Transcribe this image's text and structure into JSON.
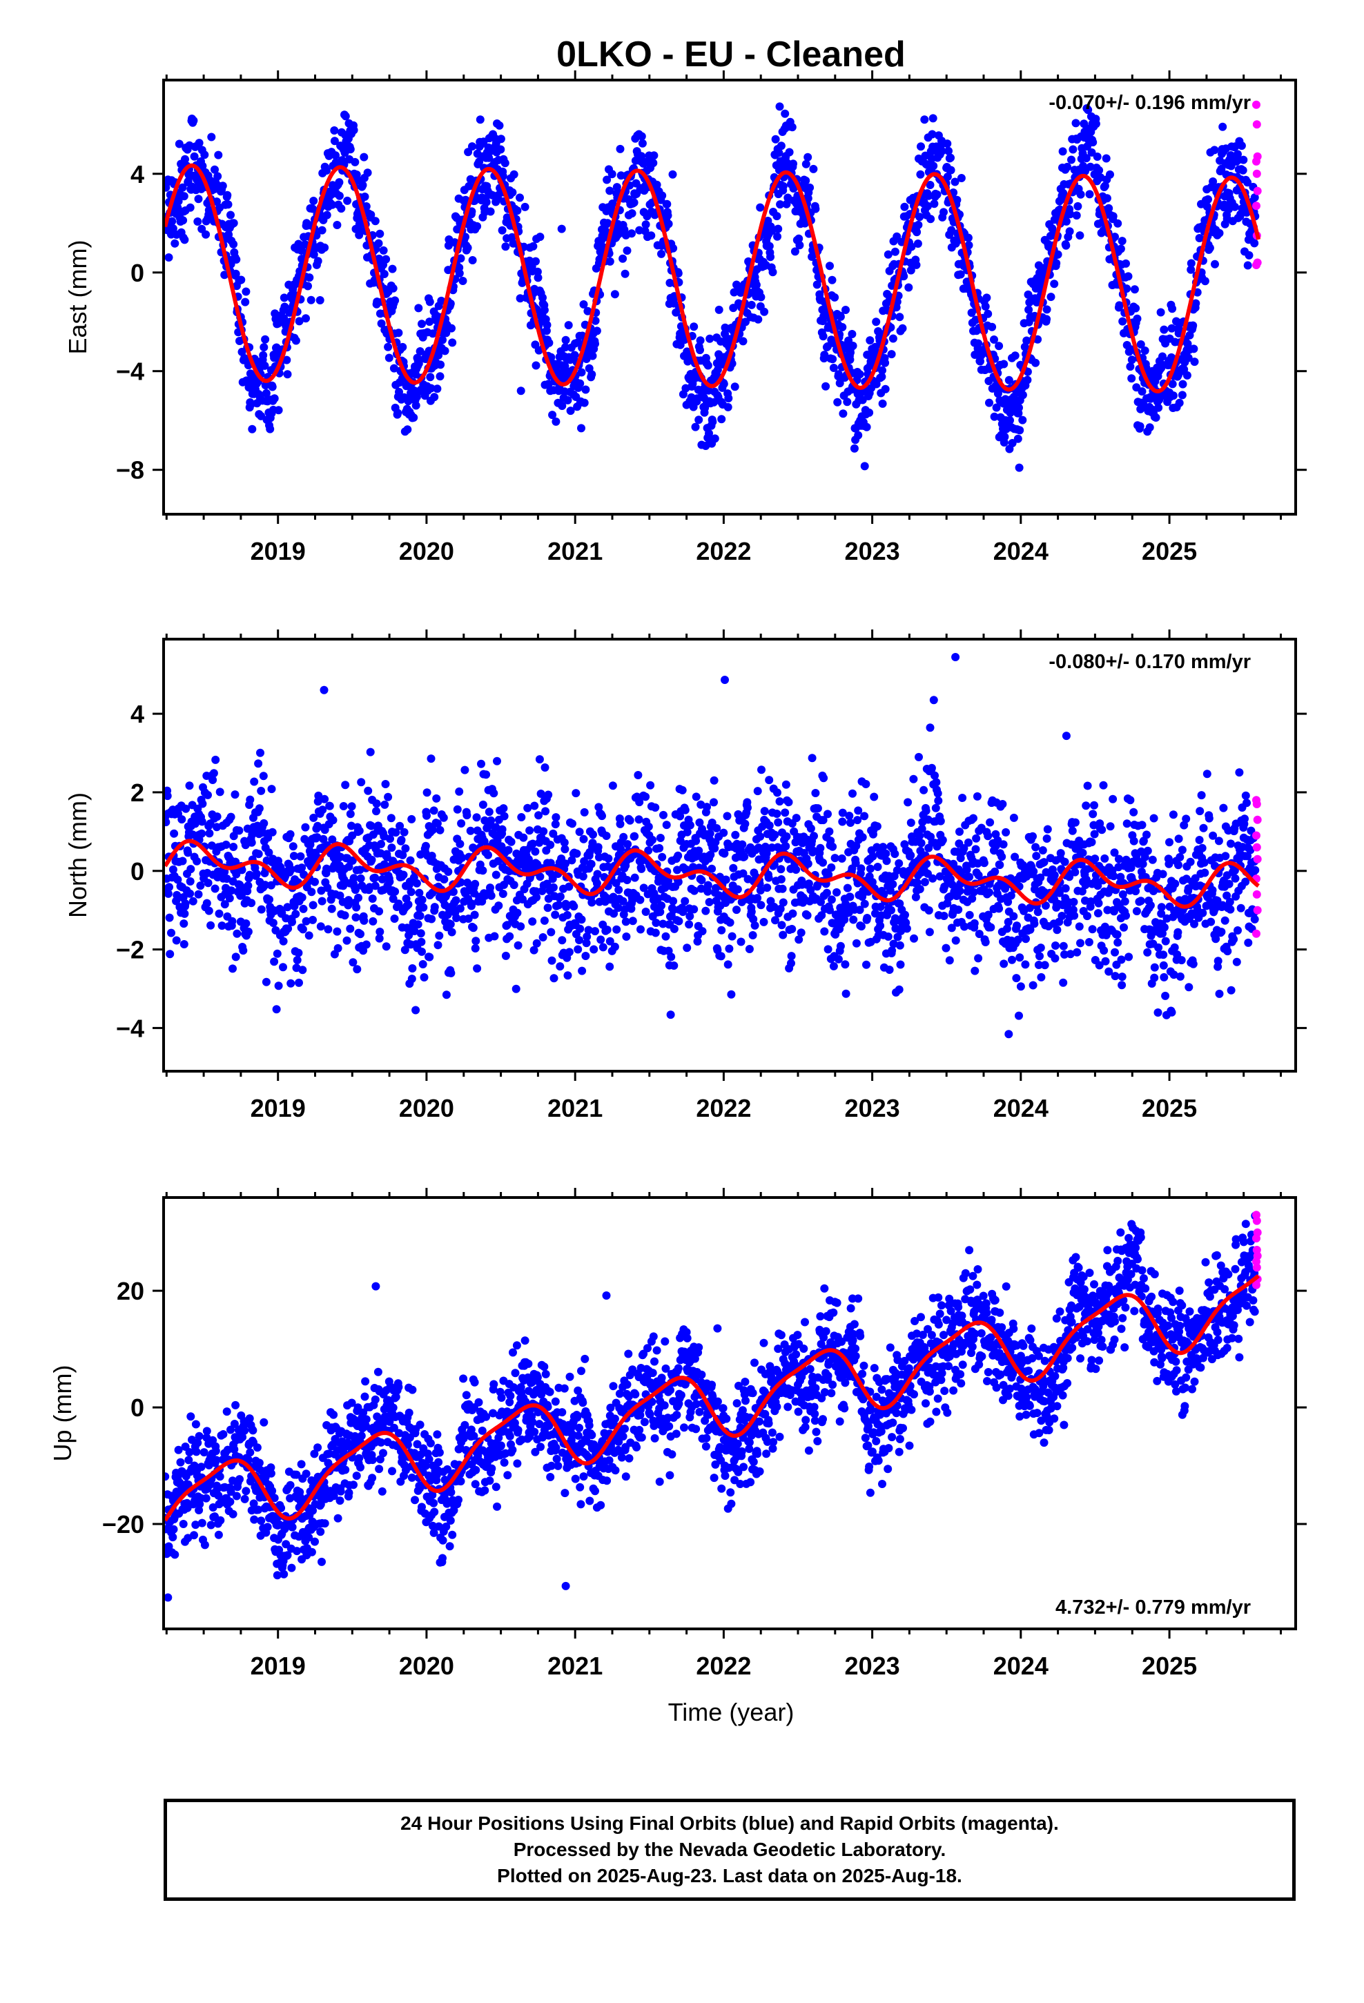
{
  "chart_data": {
    "title": "0LKO  - EU - Cleaned",
    "type": "scatter",
    "xlabel": "Time (year)",
    "x_ticks": [
      "2019",
      "2020",
      "2021",
      "2022",
      "2023",
      "2024",
      "2025"
    ],
    "xlim": [
      2018.23,
      2025.85
    ],
    "colors": {
      "final": "#0000ff",
      "rapid": "#ff00ff",
      "fit": "#ff0000"
    },
    "panels": [
      {
        "name": "East",
        "ylabel": "East (mm)",
        "ylim": [
          -9.8,
          7.8
        ],
        "y_ticks": [
          4,
          0,
          -4,
          -8
        ],
        "rate": "-0.070+/- 0.196 mm/yr",
        "rate_position": "top-right",
        "model": {
          "offset": 0.0,
          "trend": -0.07,
          "annual_amp": 4.35,
          "annual_peak": 0.42,
          "semi_amp": 0.0,
          "semi_peak": 0.0,
          "noise_sd": 0.95,
          "wiggle_amp": 0.8,
          "drift_amp": 0.2
        },
        "rapid_values": [
          6.8,
          6.0,
          4.7,
          4.5,
          4.0,
          3.3,
          2.7,
          1.5,
          0.4,
          0.3
        ]
      },
      {
        "name": "North",
        "ylabel": "North (mm)",
        "ylim": [
          -5.1,
          5.9
        ],
        "y_ticks": [
          4,
          2,
          0,
          -2,
          -4
        ],
        "rate": "-0.080+/- 0.170 mm/yr",
        "rate_position": "top-right",
        "model": {
          "offset": 0.2,
          "trend": -0.08,
          "annual_amp": 0.35,
          "annual_peak": 0.5,
          "semi_amp": 0.3,
          "semi_peak": 0.38,
          "noise_sd": 0.95,
          "wiggle_amp": 0.45,
          "drift_amp": 0.35
        },
        "rapid_values": [
          1.8,
          1.7,
          1.3,
          0.9,
          0.6,
          0.3,
          -0.2,
          -0.6,
          -1.0,
          -1.6
        ]
      },
      {
        "name": "Up",
        "ylabel": "Up (mm)",
        "ylim": [
          -38,
          36
        ],
        "y_ticks": [
          20,
          0,
          -20
        ],
        "rate": "4.732+/- 0.779 mm/yr",
        "rate_position": "bottom-right",
        "model": {
          "offset": -16.5,
          "trend": 4.732,
          "annual_amp": 5.4,
          "annual_peak": 0.62,
          "semi_amp": 1.4,
          "semi_peak": 0.3,
          "noise_sd": 4.2,
          "wiggle_amp": 2.5,
          "drift_amp": 1.5
        },
        "rapid_values": [
          33,
          32,
          30,
          29,
          27,
          26,
          25,
          24,
          22,
          21
        ]
      }
    ]
  },
  "footer": {
    "line1": "24 Hour Positions Using Final Orbits (blue) and Rapid Orbits (magenta).",
    "line2": "Processed by the Nevada Geodetic Laboratory.",
    "line3": "Plotted on 2025-Aug-23. Last data on 2025-Aug-18."
  }
}
